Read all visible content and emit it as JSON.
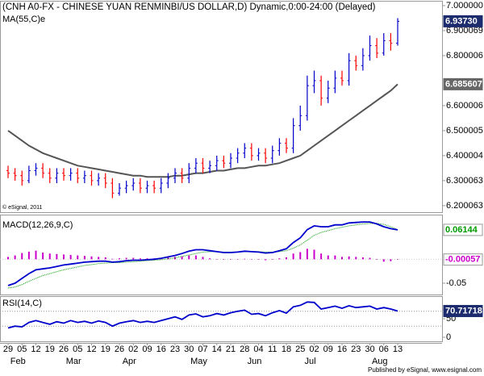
{
  "chart_data": [
    {
      "type": "ohlc",
      "title": "(CNH A0-FX - CHINESE YUAN RENMINBI/US DOLLAR,D) Dynamic,0:00-24:00 (Delayed)",
      "subtitle": "MA(55,C)e",
      "watermark": "© eSignal, 2011",
      "up_color": "#0000cc",
      "down_color": "#ff0000",
      "ma_color": "#555555",
      "open": [
        6.34,
        6.33,
        6.32,
        6.3,
        6.34,
        6.35,
        6.33,
        6.31,
        6.33,
        6.32,
        6.33,
        6.31,
        6.32,
        6.3,
        6.31,
        6.29,
        6.25,
        6.27,
        6.28,
        6.29,
        6.27,
        6.28,
        6.27,
        6.29,
        6.31,
        6.33,
        6.31,
        6.35,
        6.37,
        6.35,
        6.36,
        6.38,
        6.37,
        6.39,
        6.41,
        6.43,
        6.4,
        6.41,
        6.39,
        6.42,
        6.45,
        6.43,
        6.52,
        6.56,
        6.68,
        6.7,
        6.63,
        6.67,
        6.71,
        6.7,
        6.78,
        6.76,
        6.8,
        6.84,
        6.81,
        6.86,
        6.85
      ],
      "high": [
        6.36,
        6.35,
        6.34,
        6.36,
        6.37,
        6.37,
        6.35,
        6.35,
        6.35,
        6.35,
        6.35,
        6.34,
        6.34,
        6.33,
        6.33,
        6.31,
        6.29,
        6.3,
        6.31,
        6.31,
        6.3,
        6.3,
        6.31,
        6.33,
        6.35,
        6.35,
        6.37,
        6.39,
        6.39,
        6.38,
        6.4,
        6.4,
        6.41,
        6.43,
        6.45,
        6.45,
        6.43,
        6.43,
        6.44,
        6.47,
        6.47,
        6.55,
        6.6,
        6.72,
        6.74,
        6.72,
        6.7,
        6.74,
        6.74,
        6.81,
        6.8,
        6.83,
        6.88,
        6.87,
        6.89,
        6.89,
        6.95
      ],
      "low": [
        6.31,
        6.3,
        6.28,
        6.29,
        6.32,
        6.31,
        6.29,
        6.29,
        6.3,
        6.3,
        6.29,
        6.29,
        6.28,
        6.28,
        6.27,
        6.23,
        6.24,
        6.25,
        6.26,
        6.25,
        6.25,
        6.25,
        6.25,
        6.27,
        6.29,
        6.29,
        6.29,
        6.33,
        6.33,
        6.33,
        6.34,
        6.35,
        6.35,
        6.37,
        6.39,
        6.38,
        6.38,
        6.37,
        6.37,
        6.4,
        6.41,
        6.41,
        6.5,
        6.54,
        6.65,
        6.6,
        6.61,
        6.65,
        6.68,
        6.68,
        6.74,
        6.74,
        6.78,
        6.79,
        6.8,
        6.82,
        6.84
      ],
      "close": [
        6.33,
        6.32,
        6.3,
        6.34,
        6.35,
        6.33,
        6.31,
        6.33,
        6.32,
        6.33,
        6.31,
        6.32,
        6.3,
        6.31,
        6.29,
        6.25,
        6.27,
        6.28,
        6.29,
        6.27,
        6.28,
        6.27,
        6.29,
        6.31,
        6.33,
        6.31,
        6.35,
        6.37,
        6.35,
        6.36,
        6.38,
        6.37,
        6.39,
        6.41,
        6.43,
        6.4,
        6.41,
        6.39,
        6.42,
        6.45,
        6.43,
        6.52,
        6.56,
        6.68,
        6.7,
        6.63,
        6.67,
        6.71,
        6.7,
        6.78,
        6.76,
        6.8,
        6.84,
        6.81,
        6.86,
        6.85,
        6.9373
      ],
      "last_value_label": "6.93730",
      "ma": [
        6.5,
        6.48,
        6.46,
        6.44,
        6.425,
        6.41,
        6.4,
        6.39,
        6.38,
        6.37,
        6.36,
        6.355,
        6.35,
        6.345,
        6.34,
        6.335,
        6.33,
        6.325,
        6.32,
        6.32,
        6.315,
        6.315,
        6.315,
        6.315,
        6.32,
        6.32,
        6.325,
        6.33,
        6.33,
        6.335,
        6.34,
        6.34,
        6.345,
        6.35,
        6.35,
        6.355,
        6.36,
        6.36,
        6.365,
        6.37,
        6.38,
        6.39,
        6.4,
        6.42,
        6.44,
        6.46,
        6.48,
        6.5,
        6.52,
        6.54,
        6.56,
        6.58,
        6.6,
        6.62,
        6.64,
        6.66,
        6.685607
      ],
      "ylim": [
        6.177,
        7.016
      ],
      "yticks": [
        {
          "value": 7,
          "label": "7.000000"
        },
        6.900069,
        6.800006,
        6.600006,
        6.500005,
        6.400004,
        6.300063,
        6.200063
      ]
    },
    {
      "type": "macd",
      "title": "MACD(12,26,9,C)",
      "macd_color": "#0000cc",
      "signal_color": "#009900",
      "hist_color": "#cc00cc",
      "macd": [
        -0.055,
        -0.05,
        -0.04,
        -0.03,
        -0.022,
        -0.02,
        -0.018,
        -0.015,
        -0.012,
        -0.01,
        -0.008,
        -0.006,
        -0.005,
        -0.004,
        -0.004,
        -0.006,
        -0.005,
        -0.003,
        -0.002,
        -0.002,
        -0.001,
        0,
        0.002,
        0.005,
        0.008,
        0.012,
        0.017,
        0.02,
        0.02,
        0.018,
        0.016,
        0.014,
        0.014,
        0.015,
        0.017,
        0.016,
        0.015,
        0.013,
        0.014,
        0.018,
        0.022,
        0.035,
        0.045,
        0.062,
        0.07,
        0.068,
        0.068,
        0.072,
        0.072,
        0.076,
        0.077,
        0.078,
        0.078,
        0.074,
        0.068,
        0.064,
        0.06144
      ],
      "signal": [
        -0.06,
        -0.058,
        -0.053,
        -0.046,
        -0.04,
        -0.034,
        -0.03,
        -0.026,
        -0.022,
        -0.019,
        -0.016,
        -0.013,
        -0.011,
        -0.009,
        -0.008,
        -0.007,
        -0.007,
        -0.006,
        -0.005,
        -0.004,
        -0.003,
        -0.002,
        -0.001,
        0.001,
        0.003,
        0.006,
        0.009,
        0.012,
        0.015,
        0.016,
        0.016,
        0.015,
        0.015,
        0.015,
        0.016,
        0.016,
        0.016,
        0.015,
        0.015,
        0.016,
        0.018,
        0.023,
        0.03,
        0.04,
        0.05,
        0.056,
        0.06,
        0.064,
        0.067,
        0.07,
        0.072,
        0.074,
        0.075,
        0.075,
        0.073,
        0.068,
        0.062
      ],
      "histogram": [
        0.005,
        0.008,
        0.013,
        0.016,
        0.018,
        0.014,
        0.012,
        0.011,
        0.01,
        0.009,
        0.008,
        0.007,
        0.006,
        0.005,
        0.004,
        0.001,
        0.002,
        0.003,
        0.003,
        0.002,
        0.002,
        0.002,
        0.003,
        0.004,
        0.005,
        0.006,
        0.008,
        0.008,
        0.005,
        0.002,
        0,
        -0.001,
        -0.001,
        0,
        0.001,
        0,
        -0.001,
        -0.002,
        -0.001,
        0.002,
        0.004,
        0.012,
        0.015,
        0.022,
        0.02,
        0.012,
        0.008,
        0.008,
        0.005,
        0.006,
        0.005,
        0.004,
        0.003,
        -0.001,
        -0.005,
        -0.004,
        -0.00057
      ],
      "ylim": [
        -0.072,
        0.09
      ],
      "yticks": [
        -0.05
      ]
    },
    {
      "type": "rsi",
      "title": "RSI(14,C)",
      "color": "#0000cc",
      "values": [
        25,
        30,
        28,
        40,
        45,
        40,
        35,
        42,
        38,
        45,
        40,
        43,
        38,
        44,
        40,
        30,
        38,
        42,
        45,
        40,
        43,
        40,
        45,
        50,
        55,
        48,
        60,
        63,
        55,
        58,
        64,
        60,
        66,
        70,
        73,
        62,
        64,
        58,
        66,
        72,
        65,
        82,
        86,
        95,
        94,
        76,
        80,
        84,
        78,
        85,
        80,
        82,
        84,
        76,
        80,
        76,
        70.71718
      ],
      "bands": [
        70,
        30
      ],
      "ylim": [
        0,
        100
      ],
      "yticks": [
        50,
        0
      ]
    }
  ],
  "x_axis": {
    "dates": [
      "29",
      "05",
      "12",
      "19",
      "26",
      "05",
      "12",
      "19",
      "26",
      "02",
      "09",
      "16",
      "23",
      "30",
      "07",
      "14",
      "21",
      "28",
      "04",
      "11",
      "18",
      "25",
      "02",
      "09",
      "16",
      "23",
      "30",
      "06",
      "13"
    ],
    "months": [
      "Feb",
      "Mar",
      "Apr",
      "May",
      "Jun",
      "Jul",
      "Aug"
    ]
  },
  "footer": "Published by eSignal, www.esignal.com"
}
